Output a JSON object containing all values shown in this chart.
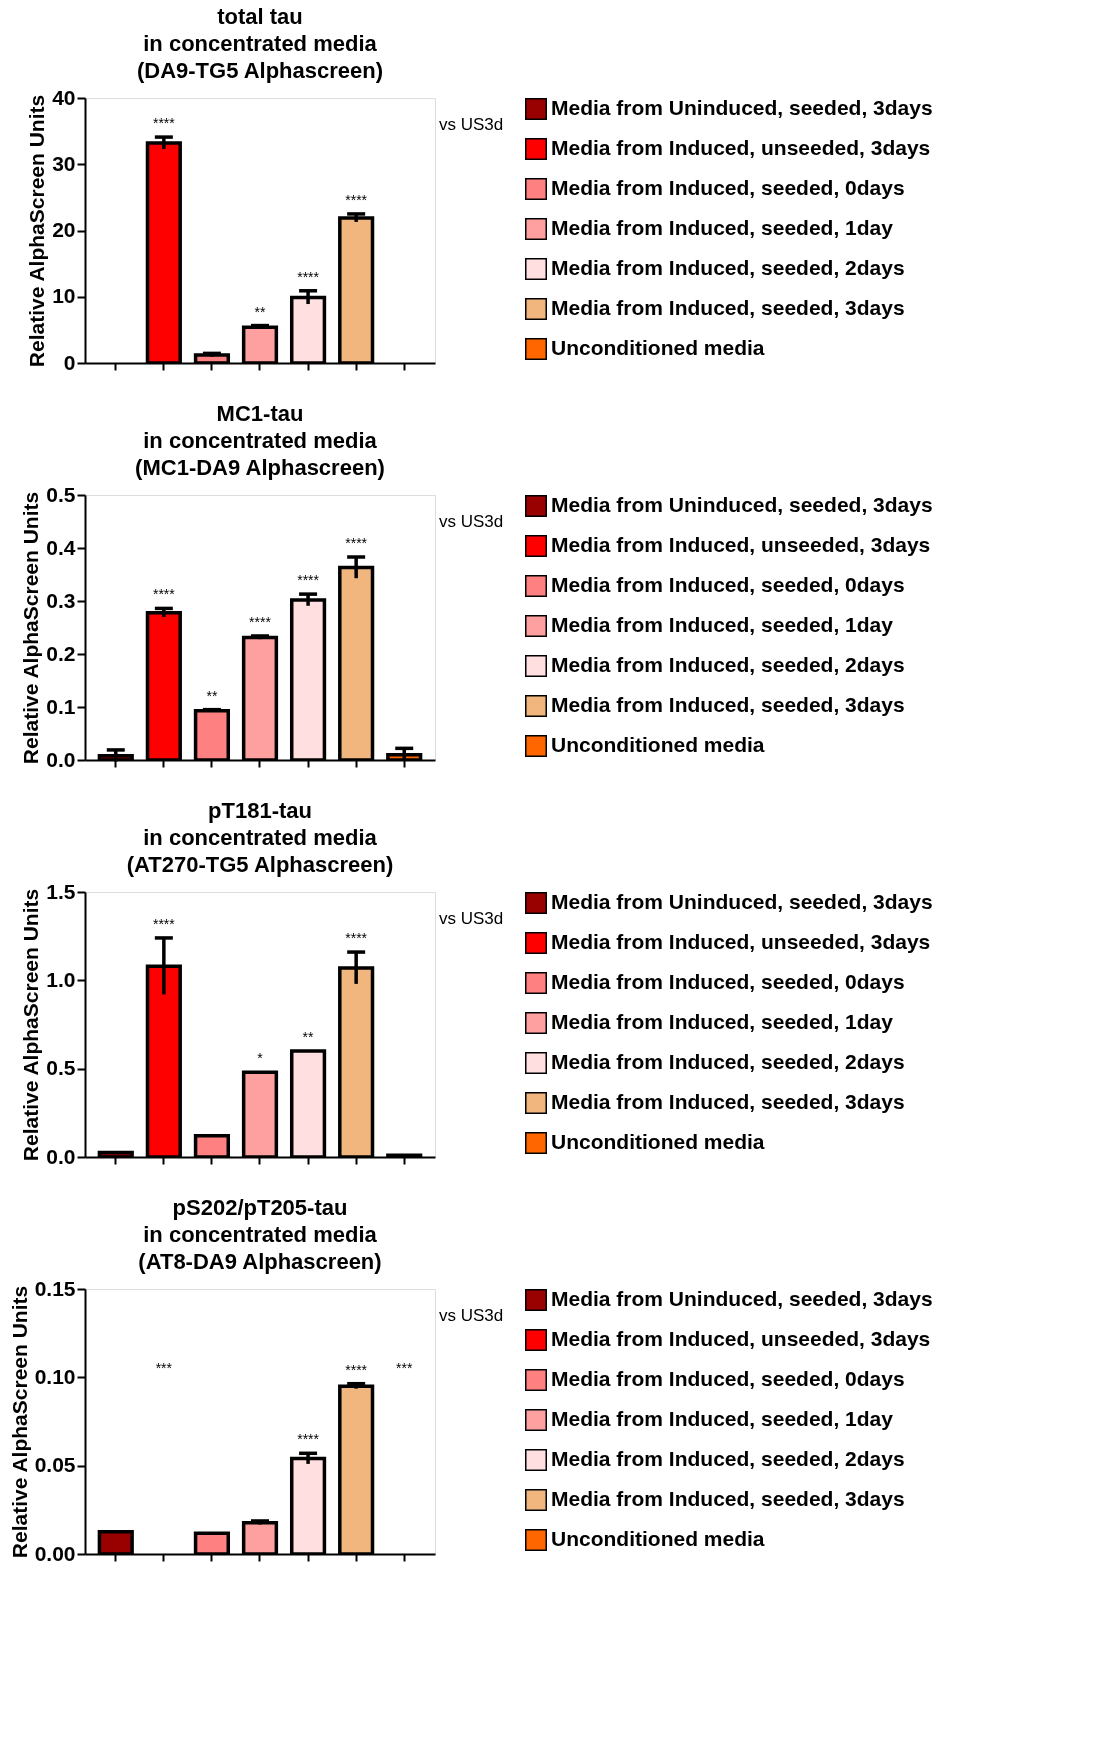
{
  "chart_data": [
    {
      "type": "bar",
      "title": "total tau\nin concentrated media\n(DA9-TG5 Alphascreen)",
      "ylabel": "Relative AlphaScreen Units",
      "categories": [
        null,
        null,
        null,
        null,
        null,
        null,
        null
      ],
      "ylim": [
        0,
        40
      ],
      "yticks": [
        0,
        10,
        20,
        30,
        40
      ],
      "grid": false,
      "legend": "right",
      "tick_labels": "y",
      "annotations": [
        "vs US3d"
      ],
      "series": [
        {
          "name": "Media from Uninduced, seeded, 3days",
          "color": "#990000",
          "values": [
            null,
            null,
            null,
            null,
            null,
            null,
            null
          ]
        },
        {
          "name": "Media from Induced, unseeded, 3days",
          "color": "#ff0000",
          "values": [
            null,
            33.2,
            null,
            null,
            null,
            null,
            null
          ],
          "errors": [
            null,
            0.9,
            null,
            null,
            null,
            null,
            null
          ],
          "value_labels": [
            null,
            "****",
            null,
            null,
            null,
            null,
            null
          ]
        },
        {
          "name": "Media from Induced, seeded, 0days",
          "color": "#ff8080",
          "values": [
            null,
            null,
            1.2,
            null,
            null,
            null,
            null
          ],
          "errors": [
            null,
            null,
            0.25,
            null,
            null,
            null,
            null
          ]
        },
        {
          "name": "Media from Induced, seeded, 1day",
          "color": "#ffa0a0",
          "values": [
            null,
            null,
            null,
            5.4,
            null,
            null,
            null
          ],
          "errors": [
            null,
            null,
            null,
            0.25,
            null,
            null,
            null
          ],
          "value_labels": [
            null,
            null,
            null,
            "**",
            null,
            null,
            null
          ]
        },
        {
          "name": "Media from Induced, seeded, 2days",
          "color": "#ffdfe0",
          "values": [
            null,
            null,
            null,
            null,
            9.9,
            null,
            null
          ],
          "errors": [
            null,
            null,
            null,
            null,
            1.0,
            null,
            null
          ],
          "value_labels": [
            null,
            null,
            null,
            null,
            "****",
            null,
            null
          ]
        },
        {
          "name": "Media from Induced, seeded, 3days",
          "color": "#f0b67e",
          "values": [
            null,
            null,
            null,
            null,
            null,
            21.9,
            null
          ],
          "errors": [
            null,
            null,
            null,
            null,
            null,
            0.6,
            null
          ],
          "value_labels": [
            null,
            null,
            null,
            null,
            null,
            "****",
            null
          ]
        },
        {
          "name": "Unconditioned media",
          "color": "#ff6600",
          "values": [
            null,
            null,
            null,
            null,
            null,
            null,
            null
          ]
        }
      ]
    },
    {
      "type": "bar",
      "title": "MC1-tau\nin concentrated media\n(MC1-DA9 Alphascreen)",
      "ylabel": "Relative AlphaScreen Units",
      "categories": [
        null,
        null,
        null,
        null,
        null,
        null,
        null
      ],
      "ylim": [
        0,
        0.5
      ],
      "yticks": [
        {
          "value": 0,
          "label": "0.0"
        },
        0.1,
        0.2,
        0.3,
        0.4,
        0.5
      ],
      "grid": false,
      "legend": "right",
      "tick_labels": "y",
      "annotations": [
        "vs US3d"
      ],
      "series": [
        {
          "name": "Media from Uninduced, seeded, 3days",
          "color": "#990000",
          "values": [
            0.008,
            null,
            null,
            null,
            null,
            null,
            null
          ],
          "errors": [
            0.011,
            null,
            null,
            null,
            null,
            null,
            null
          ]
        },
        {
          "name": "Media from Induced, unseeded, 3days",
          "color": "#ff0000",
          "values": [
            null,
            0.278,
            null,
            null,
            null,
            null,
            null
          ],
          "errors": [
            null,
            0.008,
            null,
            null,
            null,
            null,
            null
          ],
          "value_labels": [
            null,
            "****",
            null,
            null,
            null,
            null,
            null
          ]
        },
        {
          "name": "Media from Induced, seeded, 0days",
          "color": "#ff8080",
          "values": [
            null,
            null,
            0.093,
            null,
            null,
            null,
            null
          ],
          "errors": [
            null,
            null,
            0.002,
            null,
            null,
            null,
            null
          ],
          "value_labels": [
            null,
            null,
            "**",
            null,
            null,
            null,
            null
          ]
        },
        {
          "name": "Media from Induced, seeded, 1day",
          "color": "#ffa0a0",
          "values": [
            null,
            null,
            null,
            0.231,
            null,
            null,
            null
          ],
          "errors": [
            null,
            null,
            null,
            0.003,
            null,
            null,
            null
          ],
          "value_labels": [
            null,
            null,
            null,
            "****",
            null,
            null,
            null
          ]
        },
        {
          "name": "Media from Induced, seeded, 2days",
          "color": "#ffdfe0",
          "values": [
            null,
            null,
            null,
            null,
            0.302,
            null,
            null
          ],
          "errors": [
            null,
            null,
            null,
            null,
            0.011,
            null,
            null
          ],
          "value_labels": [
            null,
            null,
            null,
            null,
            "****",
            null,
            null
          ]
        },
        {
          "name": "Media from Induced, seeded, 3days",
          "color": "#f0b67e",
          "values": [
            null,
            null,
            null,
            null,
            null,
            0.363,
            null
          ],
          "errors": [
            null,
            null,
            null,
            null,
            null,
            0.02,
            null
          ],
          "value_labels": [
            null,
            null,
            null,
            null,
            null,
            "****",
            null
          ]
        },
        {
          "name": "Unconditioned media",
          "color": "#ff6600",
          "values": [
            null,
            null,
            null,
            null,
            null,
            null,
            0.01
          ],
          "errors": [
            null,
            null,
            null,
            null,
            null,
            null,
            0.012
          ]
        }
      ]
    },
    {
      "type": "bar",
      "title": "pT181-tau\nin concentrated media\n(AT270-TG5 Alphascreen)",
      "ylabel": "Relative AlphaScreen Units",
      "categories": [
        null,
        null,
        null,
        null,
        null,
        null,
        null
      ],
      "ylim": [
        0,
        1.5
      ],
      "yticks": [
        {
          "value": 0,
          "label": "0.0"
        },
        0.5,
        {
          "value": 1,
          "label": "1.0"
        },
        1.5
      ],
      "grid": false,
      "legend": "right",
      "tick_labels": "y",
      "annotations": [
        "vs US3d"
      ],
      "series": [
        {
          "name": "Media from Uninduced, seeded, 3days",
          "color": "#990000",
          "values": [
            0.025,
            null,
            null,
            null,
            null,
            null,
            null
          ]
        },
        {
          "name": "Media from Induced, unseeded, 3days",
          "color": "#ff0000",
          "values": [
            null,
            1.08,
            null,
            null,
            null,
            null,
            null
          ],
          "errors": [
            null,
            0.16,
            null,
            null,
            null,
            null,
            null
          ],
          "value_labels": [
            null,
            "****",
            null,
            null,
            null,
            null,
            null
          ]
        },
        {
          "name": "Media from Induced, seeded, 0days",
          "color": "#ff8080",
          "values": [
            null,
            null,
            0.12,
            null,
            null,
            null,
            null
          ]
        },
        {
          "name": "Media from Induced, seeded, 1day",
          "color": "#ffa0a0",
          "values": [
            null,
            null,
            null,
            0.48,
            null,
            null,
            null
          ],
          "value_labels": [
            null,
            null,
            null,
            "*",
            null,
            null,
            null
          ]
        },
        {
          "name": "Media from Induced, seeded, 2days",
          "color": "#ffdfe0",
          "values": [
            null,
            null,
            null,
            null,
            0.6,
            null,
            null
          ],
          "value_labels": [
            null,
            null,
            null,
            null,
            "**",
            null,
            null
          ]
        },
        {
          "name": "Media from Induced, seeded, 3days",
          "color": "#f0b67e",
          "values": [
            null,
            null,
            null,
            null,
            null,
            1.07,
            null
          ],
          "errors": [
            null,
            null,
            null,
            null,
            null,
            0.09,
            null
          ],
          "value_labels": [
            null,
            null,
            null,
            null,
            null,
            "****",
            null
          ]
        },
        {
          "name": "Unconditioned media",
          "color": "#ff6600",
          "values": [
            null,
            null,
            null,
            null,
            null,
            null,
            0.01
          ]
        }
      ]
    },
    {
      "type": "bar",
      "title": "pS202/pT205-tau\nin concentrated media\n(AT8-DA9 Alphascreen)",
      "ylabel": "Relative AlphaScreen Units",
      "categories": [
        null,
        null,
        null,
        null,
        null,
        null,
        null
      ],
      "ylim": [
        0,
        0.15
      ],
      "yticks": [
        {
          "value": 0,
          "label": "0.00"
        },
        0.05,
        {
          "value": 0.1,
          "label": "0.10"
        },
        0.15
      ],
      "grid": false,
      "legend": "right",
      "tick_labels": "y",
      "annotations": [
        "vs US3d"
      ],
      "series": [
        {
          "name": "Media from Uninduced, seeded, 3days",
          "color": "#990000",
          "values": [
            0.0126,
            null,
            null,
            null,
            null,
            null,
            null
          ]
        },
        {
          "name": "Media from Induced, unseeded, 3days",
          "color": "#ff0000",
          "values": [
            null,
            null,
            null,
            null,
            null,
            null,
            null
          ],
          "value_labels": [
            null,
            "***",
            null,
            null,
            null,
            null,
            null
          ]
        },
        {
          "name": "Media from Induced, seeded, 0days",
          "color": "#ff8080",
          "values": [
            null,
            null,
            0.0118,
            null,
            null,
            null,
            null
          ]
        },
        {
          "name": "Media from Induced, seeded, 1day",
          "color": "#ffa0a0",
          "values": [
            null,
            null,
            null,
            0.0177,
            null,
            null,
            null
          ],
          "errors": [
            null,
            null,
            null,
            0.001,
            null,
            null,
            null
          ]
        },
        {
          "name": "Media from Induced, seeded, 2days",
          "color": "#ffdfe0",
          "values": [
            null,
            null,
            null,
            null,
            0.054,
            null,
            null
          ],
          "errors": [
            null,
            null,
            null,
            null,
            0.003,
            null,
            null
          ],
          "value_labels": [
            null,
            null,
            null,
            null,
            "****",
            null,
            null
          ]
        },
        {
          "name": "Media from Induced, seeded, 3days",
          "color": "#f0b67e",
          "values": [
            null,
            null,
            null,
            null,
            null,
            0.095,
            null
          ],
          "errors": [
            null,
            null,
            null,
            null,
            null,
            0.0014,
            null
          ],
          "value_labels": [
            null,
            null,
            null,
            null,
            null,
            "****",
            null
          ]
        },
        {
          "name": "Unconditioned media",
          "color": "#ff6600",
          "values": [
            null,
            null,
            null,
            null,
            null,
            null,
            null
          ],
          "value_labels": [
            null,
            null,
            null,
            null,
            null,
            null,
            "***"
          ]
        }
      ]
    }
  ]
}
